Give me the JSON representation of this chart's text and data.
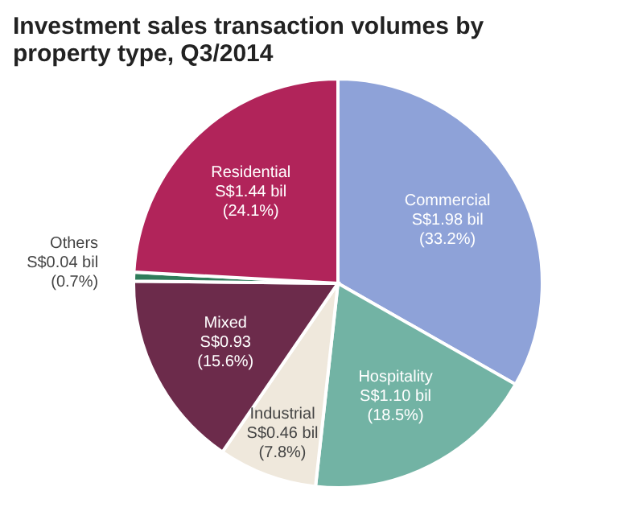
{
  "chart_data": {
    "type": "pie",
    "title": "Investment sales transaction volumes by property type, Q3/2014",
    "categories": [
      "Commercial",
      "Hospitality",
      "Industrial",
      "Mixed",
      "Others",
      "Residential"
    ],
    "values": [
      33.2,
      18.5,
      7.8,
      15.6,
      0.7,
      24.1
    ],
    "value_labels": [
      "S$1.98 bil\n(33.2%)",
      "S$1.10 bil\n(18.5%)",
      "S$0.46 bil\n(7.8%)",
      "S$0.93\n(15.6%)",
      "S$0.04 bil\n(0.7%)",
      "S$1.44 bil\n(24.1%)"
    ],
    "colors": [
      "#8ea2d8",
      "#72b3a4",
      "#efe8dc",
      "#6c2b4b",
      "#2f7c5a",
      "#b1245a"
    ]
  }
}
